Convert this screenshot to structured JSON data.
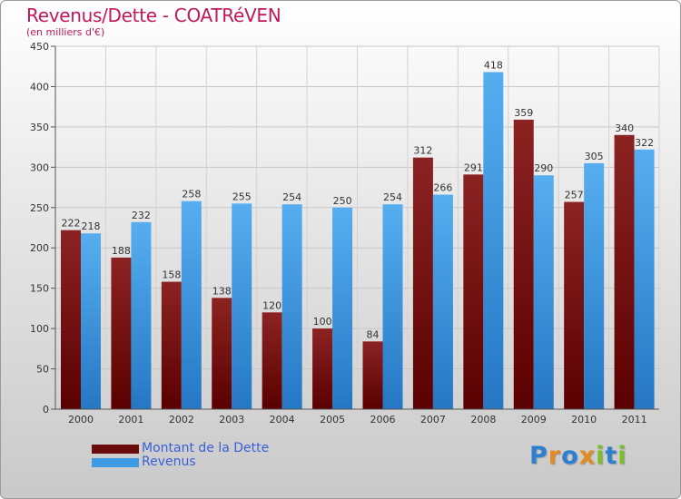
{
  "header": {
    "title": "Revenus/Dette - COATRéVEN",
    "subtitle": "(en milliers d'€)"
  },
  "colors": {
    "dette": "#7a1010",
    "revenus": "#3d9be6",
    "title": "#c2185b",
    "legend_text": "#3a5fd6"
  },
  "chart_data": {
    "type": "bar",
    "categories": [
      "2000",
      "2001",
      "2002",
      "2003",
      "2004",
      "2005",
      "2006",
      "2007",
      "2008",
      "2009",
      "2010",
      "2011"
    ],
    "series": [
      {
        "name": "Montant de la Dette",
        "values": [
          222,
          188,
          158,
          138,
          120,
          100,
          84,
          312,
          291,
          359,
          257,
          340
        ]
      },
      {
        "name": "Revenus",
        "values": [
          218,
          232,
          258,
          255,
          254,
          250,
          254,
          266,
          418,
          290,
          305,
          322
        ]
      }
    ],
    "yticks": [
      0,
      50,
      100,
      150,
      200,
      250,
      300,
      350,
      400,
      450
    ],
    "ylim": [
      0,
      450
    ],
    "grid": true,
    "legend_position": "bottom-left"
  },
  "legend": {
    "items": [
      {
        "label": "Montant de la Dette",
        "color": "#7a1010"
      },
      {
        "label": "Revenus",
        "color": "#3d9be6"
      }
    ]
  },
  "logo": {
    "text": "Proxiti",
    "letters": [
      {
        "ch": "P",
        "color": "#2e7fd0"
      },
      {
        "ch": "r",
        "color": "#e58a1f"
      },
      {
        "ch": "o",
        "color": "#2e7fd0"
      },
      {
        "ch": "x",
        "color": "#e58a1f"
      },
      {
        "ch": "i",
        "color": "#7bbf2a"
      },
      {
        "ch": "t",
        "color": "#2e7fd0"
      },
      {
        "ch": "i",
        "color": "#7bbf2a"
      }
    ]
  }
}
